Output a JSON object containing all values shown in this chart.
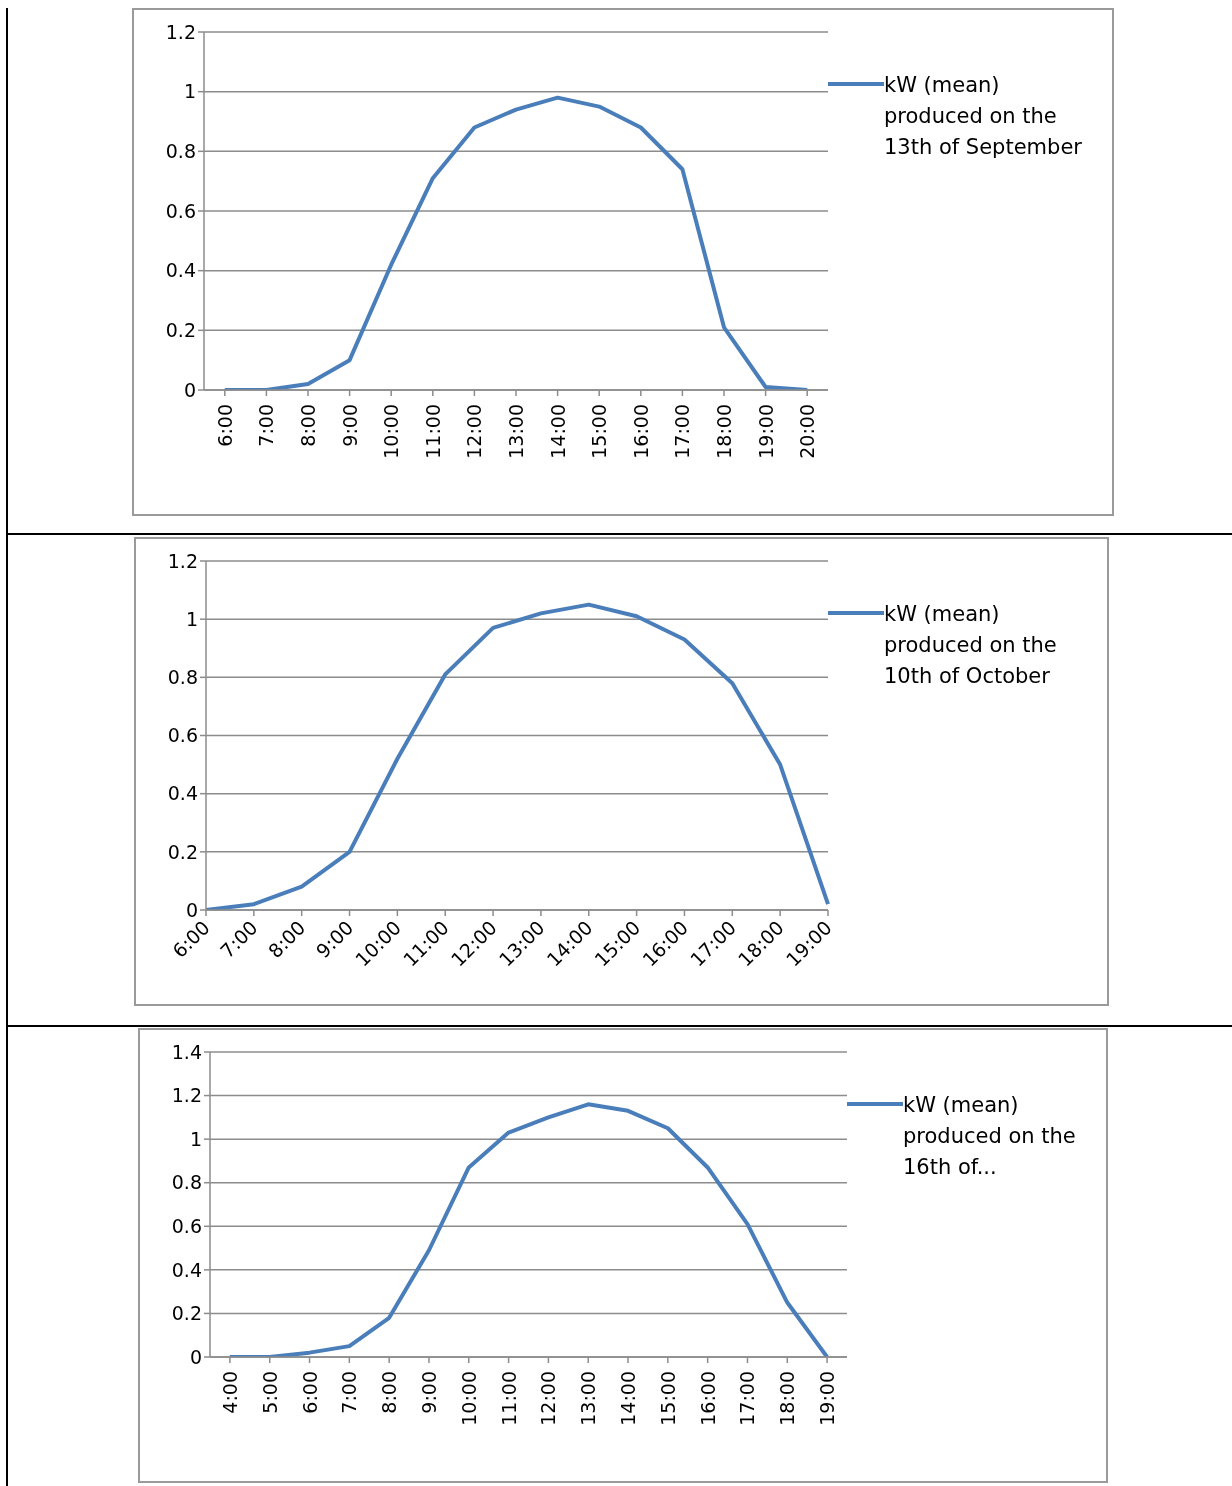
{
  "chart_data": [
    {
      "type": "line",
      "categories": [
        "6:00",
        "7:00",
        "8:00",
        "9:00",
        "10:00",
        "11:00",
        "12:00",
        "13:00",
        "14:00",
        "15:00",
        "16:00",
        "17:00",
        "18:00",
        "19:00",
        "20:00"
      ],
      "series": [
        {
          "name": "kW (mean) produced on the 13th of September",
          "color": "#4a7ebb",
          "values": [
            0,
            0,
            0.02,
            0.1,
            0.42,
            0.71,
            0.88,
            0.94,
            0.98,
            0.95,
            0.88,
            0.74,
            0.21,
            0.01,
            0
          ]
        }
      ],
      "ylim": [
        0,
        1.2
      ],
      "yticks": [
        0,
        0.2,
        0.4,
        0.6,
        0.8,
        1,
        1.2
      ],
      "grid": "y",
      "legend": "right",
      "marker": "none",
      "line_style": "solid"
    },
    {
      "type": "line",
      "categories": [
        "6:00",
        "7:00",
        "8:00",
        "9:00",
        "10:00",
        "11:00",
        "12:00",
        "13:00",
        "14:00",
        "15:00",
        "16:00",
        "17:00",
        "18:00",
        "19:00"
      ],
      "series": [
        {
          "name": "kW (mean) produced on the 10th of October",
          "color": "#4a7ebb",
          "values": [
            0,
            0.02,
            0.08,
            0.2,
            0.52,
            0.81,
            0.97,
            1.02,
            1.05,
            1.01,
            0.93,
            0.78,
            0.5,
            0.02
          ]
        }
      ],
      "ylim": [
        0,
        1.2
      ],
      "yticks": [
        0,
        0.2,
        0.4,
        0.6,
        0.8,
        1,
        1.2
      ],
      "grid": "y",
      "legend": "right",
      "marker": "none",
      "line_style": "solid"
    },
    {
      "type": "line",
      "categories": [
        "4:00",
        "5:00",
        "6:00",
        "7:00",
        "8:00",
        "9:00",
        "10:00",
        "11:00",
        "12:00",
        "13:00",
        "14:00",
        "15:00",
        "16:00",
        "17:00",
        "18:00",
        "19:00"
      ],
      "series": [
        {
          "name": "kW (mean) produced on the 16th of...",
          "color": "#4a7ebb",
          "values": [
            0,
            0,
            0.02,
            0.05,
            0.18,
            0.49,
            0.87,
            1.03,
            1.1,
            1.16,
            1.13,
            1.05,
            0.87,
            0.61,
            0.25,
            0
          ]
        }
      ],
      "ylim": [
        0,
        1.4
      ],
      "yticks": [
        0,
        0.2,
        0.4,
        0.6,
        0.8,
        1,
        1.2,
        1.4
      ],
      "grid": "y",
      "legend": "right",
      "marker": "none",
      "line_style": "solid"
    }
  ]
}
